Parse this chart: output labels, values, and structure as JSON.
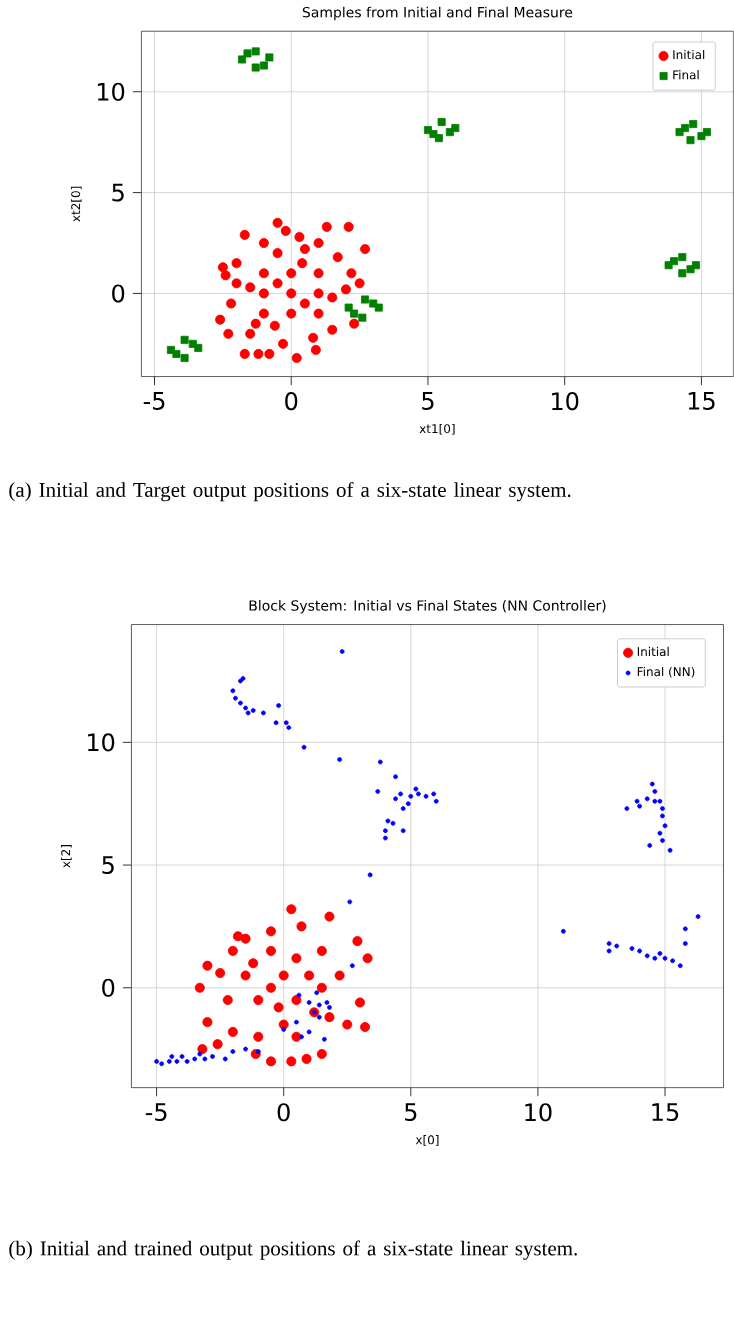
{
  "chart_data": [
    {
      "type": "scatter",
      "title": "Samples from Initial and Final Measure",
      "xlabel": "xt1[0]",
      "ylabel": "xt2[0]",
      "xlim": [
        -5.48,
        16.17
      ],
      "ylim": [
        -4.12,
        13.0
      ],
      "xticks": [
        -5,
        0,
        5,
        10,
        15
      ],
      "yticks": [
        0,
        5,
        10
      ],
      "grid": true,
      "legend": "top right",
      "series": [
        {
          "name": "Initial",
          "color": "#ff0000",
          "marker": "circle",
          "x": [
            0,
            -0.5,
            0.5,
            -1,
            1,
            0,
            0,
            -1,
            1,
            -1,
            1,
            -1.5,
            1.5,
            -2,
            2,
            -2.2,
            -2,
            2.2,
            -1.5,
            1.5,
            -0.5,
            0.5,
            -0.3,
            0.8,
            -1,
            0.3,
            -0.5,
            -0.2,
            1.3,
            2.1,
            2.7,
            -2.5,
            -2.6,
            -1.7,
            -1.2,
            -0.8,
            0.2,
            2.5,
            2.3,
            -2.3,
            1,
            -1.7,
            0.9,
            -1.3,
            0.4,
            -0.6,
            1.7,
            -2.4
          ],
          "values": [
            0,
            0.5,
            -0.5,
            0,
            0,
            1,
            -1,
            1,
            1,
            -1,
            -1,
            0.3,
            -0.2,
            0.5,
            0.2,
            -0.5,
            1.5,
            1,
            -2,
            -1.8,
            2,
            2.2,
            -2.5,
            -2.2,
            2.5,
            2.8,
            3.5,
            3.1,
            3.3,
            3.3,
            2.2,
            1.3,
            -1.3,
            -3,
            -3,
            -3,
            -3.2,
            0.5,
            -1.5,
            -2,
            2.5,
            2.9,
            -2.8,
            -1.5,
            1.5,
            -1.6,
            1.8,
            0.9
          ]
        },
        {
          "name": "Final",
          "color": "#008000",
          "marker": "square",
          "x": [
            -1.8,
            -0.8,
            -1.3,
            -1.3,
            -1.6,
            -1.0,
            5.0,
            6.0,
            5.5,
            5.4,
            5.2,
            5.8,
            14.2,
            15.2,
            14.7,
            14.6,
            14.4,
            15.0,
            13.8,
            14.8,
            14.3,
            14.3,
            14.0,
            14.6,
            2.1,
            3.2,
            2.7,
            2.6,
            2.3,
            3.0,
            -4.4,
            -3.4,
            -3.9,
            -3.9,
            -4.2,
            -3.6
          ],
          "values": [
            11.6,
            11.7,
            12.0,
            11.2,
            11.9,
            11.3,
            8.1,
            8.2,
            8.5,
            7.7,
            7.9,
            8.0,
            8.0,
            8.0,
            8.4,
            7.6,
            8.2,
            7.8,
            1.4,
            1.4,
            1.8,
            1.0,
            1.6,
            1.2,
            -0.7,
            -0.7,
            -0.3,
            -1.2,
            -1.0,
            -0.5,
            -2.8,
            -2.7,
            -2.3,
            -3.2,
            -3.0,
            -2.5
          ]
        }
      ],
      "annotations": [
        "(a) Initial and Target output positions of a six-state linear system."
      ]
    },
    {
      "type": "scatter",
      "title": "Block System: Initial vs Final States (NN Controller)",
      "xlabel": "x[0]",
      "ylabel": "x[2]",
      "xlim": [
        -5.99,
        17.3
      ],
      "ylim": [
        -4.07,
        14.8
      ],
      "xticks": [
        -5,
        0,
        5,
        10,
        15
      ],
      "yticks": [
        0,
        5,
        10
      ],
      "grid": true,
      "legend": "top right",
      "series": [
        {
          "name": "Initial",
          "color": "#ff0000",
          "marker": "circle",
          "x": [
            -0.5,
            0,
            -1,
            0.5,
            -1.5,
            1,
            -0.5,
            0,
            -1,
            0.5,
            -2,
            -2.2,
            1.5,
            1.5,
            1.8,
            -1.5,
            -0.5,
            0.3,
            0.7,
            1.8,
            2.9,
            3.3,
            3.0,
            3.2,
            2.5,
            -3.0,
            -3.3,
            -3.0,
            -3.2,
            -2.6,
            -2.0,
            -1.1,
            -0.5,
            0.3,
            1.5,
            -1.8,
            0.5,
            -0.2,
            1.2,
            -1.2,
            2.2,
            -2.5,
            0.9
          ],
          "values": [
            0,
            0.5,
            -0.5,
            -0.5,
            0.5,
            0.5,
            1.5,
            -1.5,
            -2,
            -2,
            1.5,
            -0.5,
            0,
            1.5,
            -1.2,
            2,
            2.3,
            3.2,
            2.5,
            2.9,
            1.9,
            1.2,
            -0.6,
            -1.6,
            -1.5,
            0.9,
            0.0,
            -1.4,
            -2.5,
            -2.3,
            -1.8,
            -2.7,
            -3.0,
            -3.0,
            -2.7,
            2.1,
            1.2,
            -0.8,
            -1.0,
            1.0,
            0.5,
            0.6,
            -2.9
          ]
        },
        {
          "name": "Final (NN)",
          "color": "#0000ff",
          "marker": "circle",
          "x": [
            -2,
            -1.9,
            -1.7,
            -1.5,
            -1.2,
            -0.8,
            -1.7,
            -1.6,
            -0.3,
            0.1,
            -0.2,
            0.2,
            0.8,
            2.2,
            2.3,
            3.8,
            -1.4,
            4.4,
            4.6,
            5,
            5.3,
            5.6,
            5.9,
            6.0,
            4.7,
            4.4,
            3.7,
            4.1,
            4.0,
            4.0,
            4.7,
            4.3,
            5.2,
            4.9,
            14.5,
            14.6,
            14.8,
            14.3,
            13.9,
            13.5,
            14.0,
            14.9,
            14.9,
            15.0,
            14.8,
            14.9,
            14.4,
            15.2,
            14.6,
            11.0,
            12.8,
            12.8,
            13.1,
            13.7,
            14.0,
            14.3,
            14.6,
            15.0,
            15.3,
            15.6,
            15.8,
            15.8,
            16.3,
            14.8,
            1.0,
            1.4,
            1.8,
            1.3,
            1.4,
            0.6,
            1.7,
            1.2,
            2.7,
            2.6,
            3.4,
            0.5,
            0.0,
            1.0,
            1.6,
            0.7,
            -5.0,
            -4.8,
            -4.5,
            -4.2,
            -4.0,
            -3.8,
            -3.5,
            -3.3,
            -2.8,
            -2.3,
            -2.0,
            -1.5,
            -1.0,
            -4.4,
            -3.1
          ],
          "values": [
            12.1,
            11.8,
            11.6,
            11.4,
            11.3,
            11.2,
            12.5,
            12.6,
            10.8,
            10.8,
            11.5,
            10.6,
            9.8,
            9.3,
            13.7,
            9.2,
            11.2,
            7.7,
            7.9,
            7.8,
            7.9,
            7.8,
            7.9,
            7.6,
            7.3,
            8.6,
            8.0,
            6.8,
            6.4,
            6.1,
            6.4,
            6.7,
            8.1,
            7.5,
            8.3,
            8.0,
            7.6,
            7.7,
            7.6,
            7.3,
            7.4,
            7.3,
            7.0,
            6.6,
            6.3,
            6.0,
            5.8,
            5.6,
            7.6,
            2.3,
            1.8,
            1.5,
            1.7,
            1.6,
            1.5,
            1.3,
            1.2,
            1.2,
            1.1,
            0.9,
            1.8,
            2.4,
            2.9,
            1.4,
            -0.6,
            -0.7,
            -0.8,
            -0.2,
            -1.2,
            -0.3,
            -0.6,
            -1.0,
            0.9,
            3.5,
            4.6,
            -1.4,
            -1.7,
            -1.8,
            -2.1,
            -2.0,
            -3.0,
            -3.1,
            -3.0,
            -3.0,
            -2.8,
            -3.0,
            -2.9,
            -2.7,
            -2.8,
            -2.9,
            -2.6,
            -2.5,
            -2.6,
            -2.8,
            -2.9
          ]
        }
      ],
      "annotations": [
        "(b) Initial and trained output positions of a six-state linear system."
      ]
    }
  ]
}
